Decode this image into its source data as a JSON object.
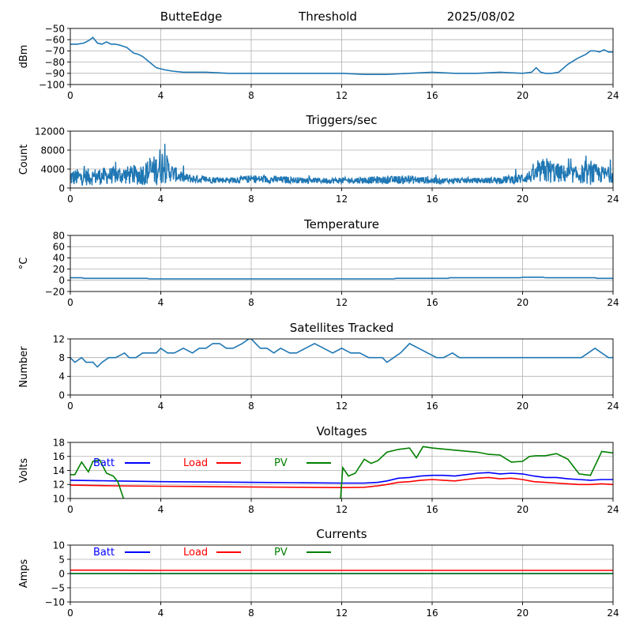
{
  "header": {
    "station": "ButteEdge",
    "mode": "Threshold",
    "date": "2025/08/02"
  },
  "colors": {
    "series": "#1f77b4",
    "batt": "#0000ff",
    "load": "#ff0000",
    "pv": "#008000",
    "grid": "#b0b0b0"
  },
  "chart_data": [
    {
      "type": "line",
      "title": "",
      "xlabel": "",
      "ylabel": "dBm",
      "xlim": [
        0,
        24
      ],
      "ylim": [
        -100,
        -50
      ],
      "xticks": [
        0,
        4,
        8,
        12,
        16,
        20,
        24
      ],
      "yticks": [
        -100,
        -90,
        -80,
        -70,
        -60,
        -50
      ],
      "grid": true,
      "series": [
        {
          "x": [
            0,
            0.3,
            0.6,
            0.8,
            1.0,
            1.2,
            1.4,
            1.6,
            1.8,
            2.0,
            2.2,
            2.5,
            2.8,
            3.0,
            3.2,
            3.5,
            3.8,
            4.0,
            4.2,
            4.5,
            5,
            6,
            7,
            8,
            9,
            10,
            11,
            12,
            13,
            14,
            15,
            16,
            17,
            18,
            19,
            20,
            20.4,
            20.6,
            20.8,
            21.0,
            21.3,
            21.6,
            22.0,
            22.4,
            22.8,
            23.0,
            23.2,
            23.4,
            23.6,
            23.8,
            24
          ],
          "y": [
            -64,
            -64,
            -63,
            -61,
            -58,
            -63,
            -64,
            -62,
            -64,
            -64,
            -65,
            -67,
            -72,
            -73,
            -75,
            -80,
            -85,
            -86,
            -87,
            -88,
            -89,
            -89,
            -90,
            -90,
            -90,
            -90,
            -90,
            -90,
            -91,
            -91,
            -90,
            -89,
            -90,
            -90,
            -89,
            -90,
            -89,
            -85,
            -89,
            -90,
            -90,
            -89,
            -82,
            -77,
            -73,
            -70,
            -70,
            -71,
            -69,
            -71,
            -71
          ]
        }
      ]
    },
    {
      "type": "line",
      "title": "Triggers/sec",
      "xlabel": "",
      "ylabel": "Count",
      "xlim": [
        0,
        24
      ],
      "ylim": [
        0,
        12000
      ],
      "xticks": [
        0,
        4,
        8,
        12,
        16,
        20,
        24
      ],
      "yticks": [
        0,
        4000,
        8000,
        12000
      ],
      "grid": true,
      "noisy": true,
      "envelope": {
        "x": [
          0,
          1,
          2,
          3,
          3.8,
          4.0,
          4.2,
          4.5,
          5,
          6,
          7,
          8,
          9,
          10,
          11,
          12,
          13,
          14,
          15,
          16,
          17,
          18,
          19,
          19.8,
          20.5,
          21.0,
          21.5,
          22,
          22.5,
          23,
          23.5,
          24
        ],
        "base": [
          2000,
          2200,
          2500,
          2500,
          3500,
          4500,
          4000,
          3000,
          2000,
          1700,
          1600,
          1800,
          1700,
          1600,
          1500,
          1500,
          1600,
          1600,
          1700,
          1500,
          1500,
          1500,
          1600,
          1800,
          2500,
          3500,
          3000,
          2700,
          2600,
          2800,
          2700,
          2600
        ],
        "amp": [
          3000,
          3000,
          3000,
          3500,
          5500,
          7000,
          5500,
          3000,
          1800,
          1200,
          1000,
          1400,
          1300,
          1100,
          1000,
          1100,
          1200,
          1300,
          1500,
          1100,
          900,
          1000,
          1200,
          1700,
          2500,
          5000,
          3500,
          3000,
          3000,
          4000,
          3000,
          2800
        ]
      }
    },
    {
      "type": "line",
      "title": "Temperature",
      "xlabel": "",
      "ylabel": "°C",
      "xlim": [
        0,
        24
      ],
      "ylim": [
        -20,
        80
      ],
      "xticks": [
        0,
        4,
        8,
        12,
        16,
        20,
        24
      ],
      "yticks": [
        -20,
        0,
        20,
        40,
        60,
        80
      ],
      "grid": true,
      "series": [
        {
          "x": [
            0,
            0.5,
            0.6,
            3.4,
            3.5,
            14.3,
            14.4,
            16.7,
            16.8,
            19.9,
            20.0,
            20.9,
            21.0,
            23.2,
            23.3,
            24
          ],
          "y": [
            4.5,
            4.5,
            3.5,
            3.5,
            2.5,
            2.5,
            3.5,
            3.5,
            4.5,
            4.5,
            5.5,
            5.5,
            4.5,
            4.5,
            3.5,
            3.5
          ]
        }
      ]
    },
    {
      "type": "line",
      "title": "Satellites Tracked",
      "xlabel": "",
      "ylabel": "Number",
      "xlim": [
        0,
        24
      ],
      "ylim": [
        0,
        12
      ],
      "xticks": [
        0,
        4,
        8,
        12,
        16,
        20,
        24
      ],
      "yticks": [
        0,
        4,
        8,
        12
      ],
      "grid": true,
      "series": [
        {
          "x": [
            0,
            0.2,
            0.5,
            0.7,
            1.0,
            1.2,
            1.4,
            1.7,
            2.0,
            2.4,
            2.6,
            2.9,
            3.2,
            3.5,
            3.8,
            4.0,
            4.3,
            4.6,
            5.0,
            5.4,
            5.7,
            6.0,
            6.3,
            6.6,
            6.9,
            7.2,
            7.6,
            7.9,
            8.0,
            8.2,
            8.4,
            8.7,
            9.0,
            9.3,
            9.7,
            10.0,
            10.4,
            10.8,
            11.2,
            11.6,
            12.0,
            12.4,
            12.8,
            13.2,
            13.5,
            13.8,
            14.0,
            14.3,
            14.6,
            15.0,
            15.4,
            15.8,
            16.2,
            16.5,
            16.9,
            17.2,
            17.6,
            18.0,
            18.4,
            18.8,
            19.2,
            19.6,
            20.0,
            20.4,
            20.8,
            21.2,
            21.6,
            22.0,
            22.3,
            22.6,
            22.9,
            23.2,
            23.5,
            23.8,
            24
          ],
          "y": [
            8,
            7,
            8,
            7,
            7,
            6,
            7,
            8,
            8,
            9,
            8,
            8,
            9,
            9,
            9,
            10,
            9,
            9,
            10,
            9,
            10,
            10,
            11,
            11,
            10,
            10,
            11,
            12,
            12,
            11,
            10,
            10,
            9,
            10,
            9,
            9,
            10,
            11,
            10,
            9,
            10,
            9,
            9,
            8,
            8,
            8,
            7,
            8,
            9,
            11,
            10,
            9,
            8,
            8,
            9,
            8,
            8,
            8,
            8,
            8,
            8,
            8,
            8,
            8,
            8,
            8,
            8,
            8,
            8,
            8,
            9,
            10,
            9,
            8,
            8
          ]
        }
      ]
    },
    {
      "type": "line",
      "title": "Voltages",
      "xlabel": "",
      "ylabel": "Volts",
      "xlim": [
        0,
        24
      ],
      "ylim": [
        10,
        18
      ],
      "xticks": [
        0,
        4,
        8,
        12,
        16,
        20,
        24
      ],
      "yticks": [
        10,
        12,
        14,
        16,
        18
      ],
      "grid": true,
      "series": [
        {
          "name": "Batt",
          "color": "#0000ff",
          "x": [
            0,
            2,
            4,
            6,
            8,
            10,
            12,
            13,
            13.6,
            14.0,
            14.5,
            15.0,
            15.5,
            16.0,
            16.5,
            17.0,
            17.5,
            18.0,
            18.5,
            19.0,
            19.5,
            20.0,
            20.5,
            21.0,
            21.5,
            22.0,
            22.5,
            23.0,
            23.5,
            24
          ],
          "y": [
            12.6,
            12.5,
            12.4,
            12.35,
            12.3,
            12.25,
            12.2,
            12.2,
            12.3,
            12.5,
            12.9,
            13.0,
            13.2,
            13.3,
            13.3,
            13.2,
            13.4,
            13.6,
            13.7,
            13.5,
            13.6,
            13.5,
            13.2,
            13.0,
            13.0,
            12.8,
            12.7,
            12.6,
            12.7,
            12.7
          ]
        },
        {
          "name": "Load",
          "color": "#ff0000",
          "x": [
            0,
            2,
            4,
            6,
            8,
            10,
            12,
            13,
            13.6,
            14.0,
            14.5,
            15.0,
            15.5,
            16.0,
            16.5,
            17.0,
            17.5,
            18.0,
            18.5,
            19.0,
            19.5,
            20.0,
            20.5,
            21.0,
            21.5,
            22.0,
            22.5,
            23.0,
            23.5,
            24
          ],
          "y": [
            11.9,
            11.8,
            11.75,
            11.7,
            11.65,
            11.6,
            11.55,
            11.6,
            11.8,
            12.0,
            12.3,
            12.4,
            12.6,
            12.7,
            12.6,
            12.5,
            12.7,
            12.9,
            13.0,
            12.8,
            12.9,
            12.7,
            12.4,
            12.3,
            12.2,
            12.1,
            12.0,
            12.0,
            12.1,
            12.0
          ]
        },
        {
          "name": "PV",
          "color": "#008000",
          "segments": [
            {
              "x": [
                0,
                0.2,
                0.5,
                0.8,
                1.0,
                1.3,
                1.6,
                1.9,
                2.1,
                2.25,
                2.35
              ],
              "y": [
                13.4,
                13.4,
                15.2,
                13.8,
                15.3,
                15.5,
                13.6,
                13.2,
                12.4,
                11.0,
                10.0
              ]
            },
            {
              "x": [
                11.95,
                12.05,
                12.3,
                12.6,
                13.0,
                13.3,
                13.6,
                14.0,
                14.5,
                15.0,
                15.3,
                15.6,
                16.0,
                17.0,
                18.0,
                18.5,
                19.0,
                19.5,
                20.0,
                20.3,
                20.6,
                21.0,
                21.5,
                22.0,
                22.5,
                23.0,
                23.5,
                24
              ],
              "y": [
                10.0,
                14.4,
                13.2,
                13.6,
                15.6,
                15.0,
                15.4,
                16.6,
                17.0,
                17.2,
                15.8,
                17.4,
                17.2,
                16.9,
                16.6,
                16.3,
                16.2,
                15.2,
                15.3,
                16.0,
                16.1,
                16.1,
                16.4,
                15.6,
                13.5,
                13.3,
                16.7,
                16.5
              ]
            }
          ]
        }
      ]
    },
    {
      "type": "line",
      "title": "Currents",
      "xlabel": "",
      "ylabel": "Amps",
      "xlim": [
        0,
        24
      ],
      "ylim": [
        -10,
        10
      ],
      "xticks": [
        0,
        4,
        8,
        12,
        16,
        20,
        24
      ],
      "yticks": [
        -10,
        -5,
        0,
        5,
        10
      ],
      "grid": true,
      "series": [
        {
          "name": "Batt",
          "color": "#0000ff",
          "x": [
            0,
            24
          ],
          "y": [
            0,
            0
          ]
        },
        {
          "name": "Load",
          "color": "#ff0000",
          "x": [
            0,
            2,
            4,
            8,
            12,
            16,
            20,
            24
          ],
          "y": [
            1.2,
            1.2,
            1.1,
            1.1,
            1.1,
            1.1,
            1.1,
            1.1
          ]
        },
        {
          "name": "PV",
          "color": "#008000",
          "x": [
            0,
            24
          ],
          "y": [
            0,
            0
          ]
        }
      ]
    }
  ]
}
